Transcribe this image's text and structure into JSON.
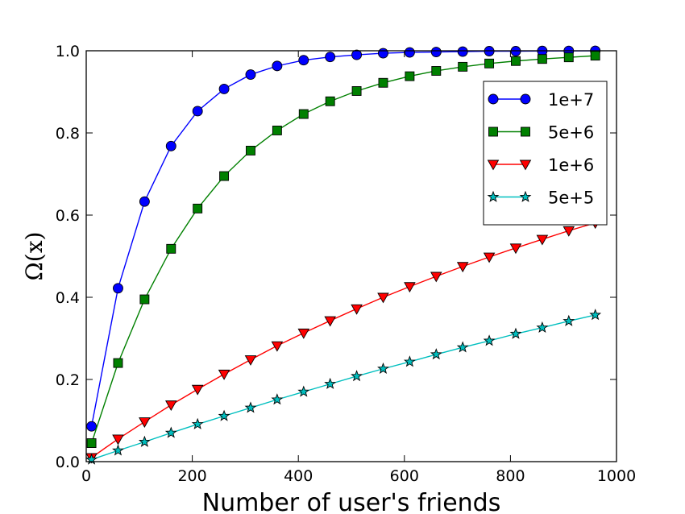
{
  "chart_data": {
    "type": "line",
    "title": "",
    "xlabel": "Number of user's friends",
    "ylabel": "Ω(x)",
    "xlim": [
      0,
      1000
    ],
    "ylim": [
      0.0,
      1.0
    ],
    "xticks": [
      0,
      200,
      400,
      600,
      800,
      1000
    ],
    "xtick_labels": [
      "0",
      "200",
      "400",
      "600",
      "800",
      "1000"
    ],
    "yticks": [
      0.0,
      0.2,
      0.4,
      0.6,
      0.8,
      1.0
    ],
    "ytick_labels": [
      "0.0",
      "0.2",
      "0.4",
      "0.6",
      "0.8",
      "1.0"
    ],
    "grid": false,
    "legend_position": "top-right",
    "x": [
      10,
      60,
      110,
      160,
      210,
      260,
      310,
      360,
      410,
      460,
      510,
      560,
      610,
      660,
      710,
      760,
      810,
      860,
      910,
      960
    ],
    "series": [
      {
        "name": "1e+7",
        "color": "#0000ff",
        "marker": "circle",
        "values": [
          0.086,
          0.422,
          0.633,
          0.768,
          0.853,
          0.907,
          0.942,
          0.963,
          0.977,
          0.985,
          0.99,
          0.994,
          0.996,
          0.997,
          0.998,
          0.999,
          0.999,
          0.9995,
          0.9997,
          0.9998
        ]
      },
      {
        "name": "5e+6",
        "color": "#008000",
        "marker": "square",
        "values": [
          0.045,
          0.24,
          0.395,
          0.518,
          0.616,
          0.695,
          0.757,
          0.806,
          0.846,
          0.877,
          0.902,
          0.922,
          0.938,
          0.951,
          0.961,
          0.969,
          0.975,
          0.98,
          0.984,
          0.988
        ]
      },
      {
        "name": "1e+6",
        "color": "#ff0000",
        "marker": "triangle-down",
        "values": [
          0.01,
          0.055,
          0.097,
          0.138,
          0.176,
          0.213,
          0.248,
          0.282,
          0.313,
          0.343,
          0.372,
          0.4,
          0.426,
          0.451,
          0.475,
          0.498,
          0.52,
          0.541,
          0.562,
          0.581
        ]
      },
      {
        "name": "5e+5",
        "color": "#00bfbf",
        "marker": "star",
        "values": [
          0.005,
          0.027,
          0.048,
          0.07,
          0.091,
          0.111,
          0.131,
          0.151,
          0.17,
          0.189,
          0.208,
          0.226,
          0.243,
          0.261,
          0.278,
          0.294,
          0.311,
          0.326,
          0.342,
          0.357
        ]
      }
    ]
  }
}
